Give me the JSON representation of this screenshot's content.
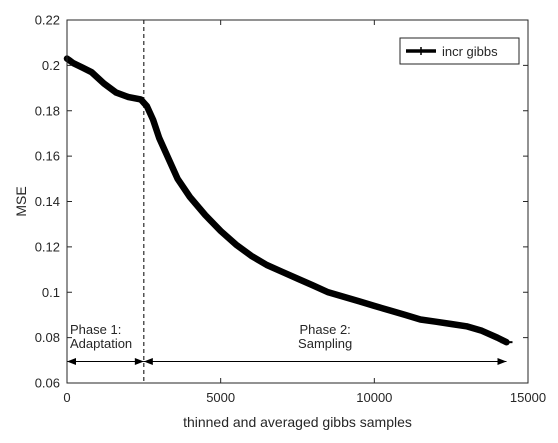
{
  "chart_data": {
    "type": "line",
    "title": "",
    "xlabel": "thinned and averaged gibbs samples",
    "ylabel": "MSE",
    "xlim": [
      0,
      15000
    ],
    "ylim": [
      0.06,
      0.22
    ],
    "xticks": [
      0,
      5000,
      10000,
      15000
    ],
    "xtick_labels": [
      "0",
      "5000",
      "10000",
      "15000"
    ],
    "yticks": [
      0.06,
      0.08,
      0.1,
      0.12,
      0.14,
      0.16,
      0.18,
      0.2,
      0.22
    ],
    "ytick_labels": [
      "0.06",
      "0.08",
      "0.1",
      "0.12",
      "0.14",
      "0.16",
      "0.18",
      "0.2",
      "0.22"
    ],
    "grid": false,
    "legend_position": "top-right",
    "series": [
      {
        "name": "incr gibbs",
        "color": "#000000",
        "x": [
          0,
          100,
          200,
          500,
          800,
          1200,
          1600,
          2000,
          2400,
          2600,
          2800,
          3000,
          3300,
          3600,
          4000,
          4500,
          5000,
          5500,
          6000,
          6500,
          7000,
          7500,
          8000,
          8500,
          9000,
          9500,
          10000,
          10500,
          11000,
          11500,
          12000,
          12500,
          13000,
          13500,
          14000,
          14300
        ],
        "y": [
          0.203,
          0.202,
          0.201,
          0.199,
          0.197,
          0.192,
          0.188,
          0.186,
          0.185,
          0.182,
          0.176,
          0.168,
          0.159,
          0.15,
          0.142,
          0.134,
          0.127,
          0.121,
          0.116,
          0.112,
          0.109,
          0.106,
          0.103,
          0.1,
          0.098,
          0.096,
          0.094,
          0.092,
          0.09,
          0.088,
          0.087,
          0.086,
          0.085,
          0.083,
          0.08,
          0.078
        ]
      }
    ],
    "annotations": {
      "divider_x": 2500,
      "arrow_y": 0.0695,
      "phase1_line1": "Phase 1:",
      "phase1_line2": "Adaptation",
      "phase1_range": [
        0,
        2500
      ],
      "phase2_line1": "Phase 2:",
      "phase2_line2": "Sampling",
      "phase2_range": [
        2500,
        14300
      ]
    }
  }
}
